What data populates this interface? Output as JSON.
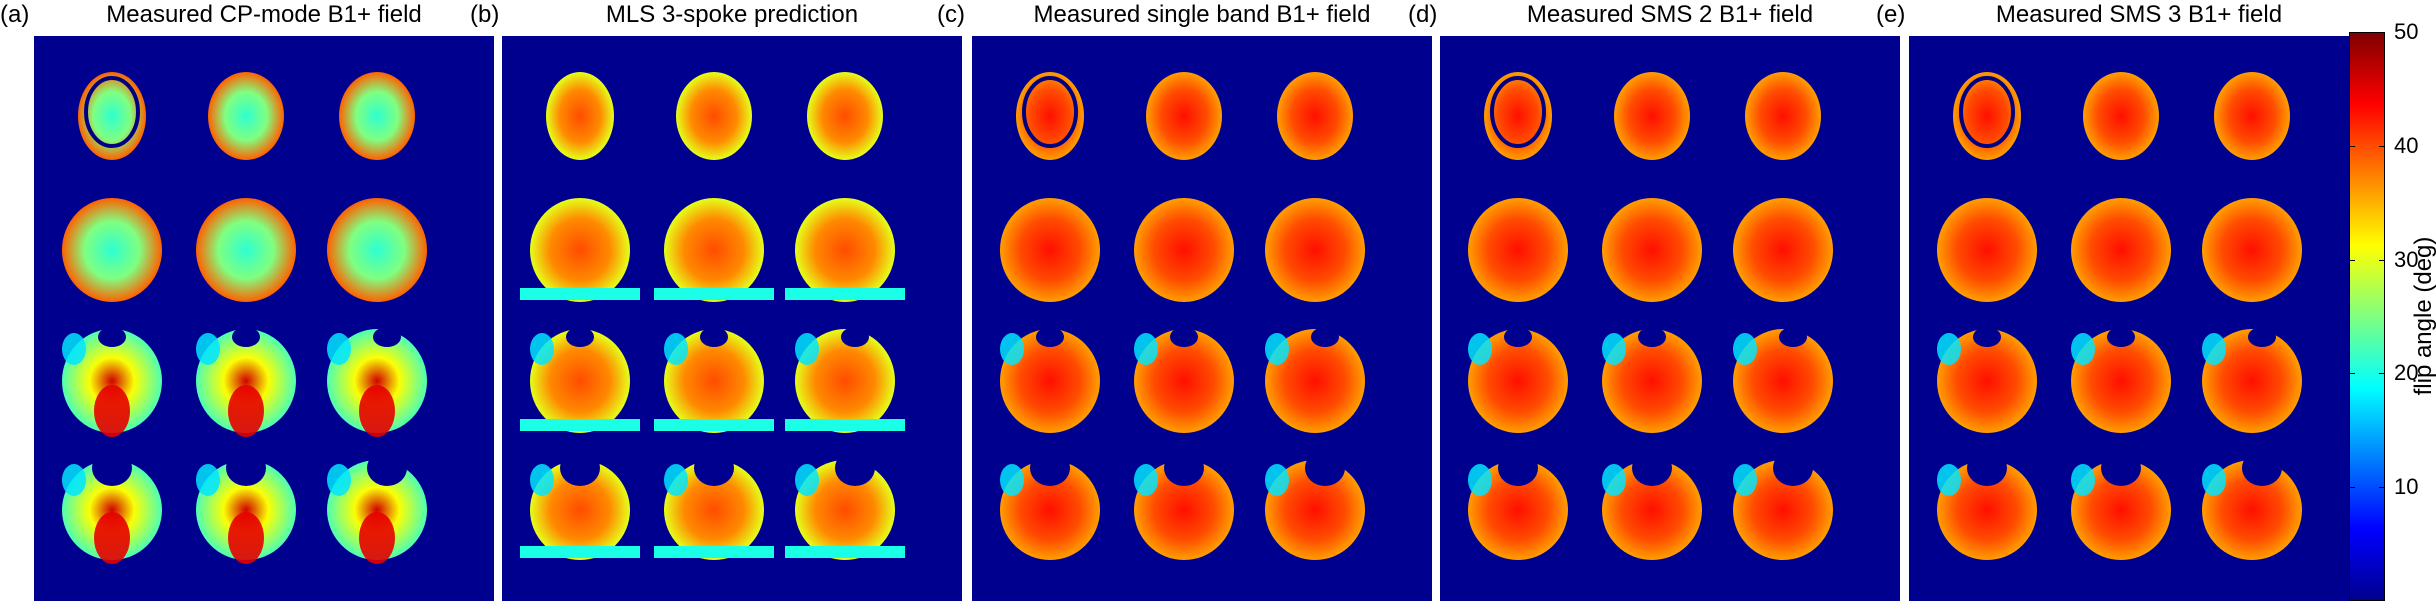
{
  "panels": [
    {
      "tag": "(a)",
      "title": "Measured CP-mode B1+ field",
      "pattern": "cp-mode"
    },
    {
      "tag": "(b)",
      "title": "MLS 3-spoke prediction",
      "pattern": "noisy-prediction"
    },
    {
      "tag": "(c)",
      "title": "Measured single band B1+ field",
      "pattern": "uniform"
    },
    {
      "tag": "(d)",
      "title": "Measured SMS 2 B1+ field",
      "pattern": "uniform"
    },
    {
      "tag": "(e)",
      "title": "Measured SMS 3 B1+ field",
      "pattern": "uniform"
    }
  ],
  "grid": {
    "rows": 4,
    "cols": 3
  },
  "colorbar": {
    "label": "flip angle (deg)",
    "range": [
      0,
      50
    ],
    "ticks": [
      "10",
      "20",
      "30",
      "40",
      "50"
    ],
    "colormap": "jet",
    "colors": {
      "background": "#00008f",
      "low": "#0000ff",
      "mid": "#00ffff",
      "upper": "#ffff00",
      "high": "#ff0000",
      "max": "#800000"
    }
  }
}
